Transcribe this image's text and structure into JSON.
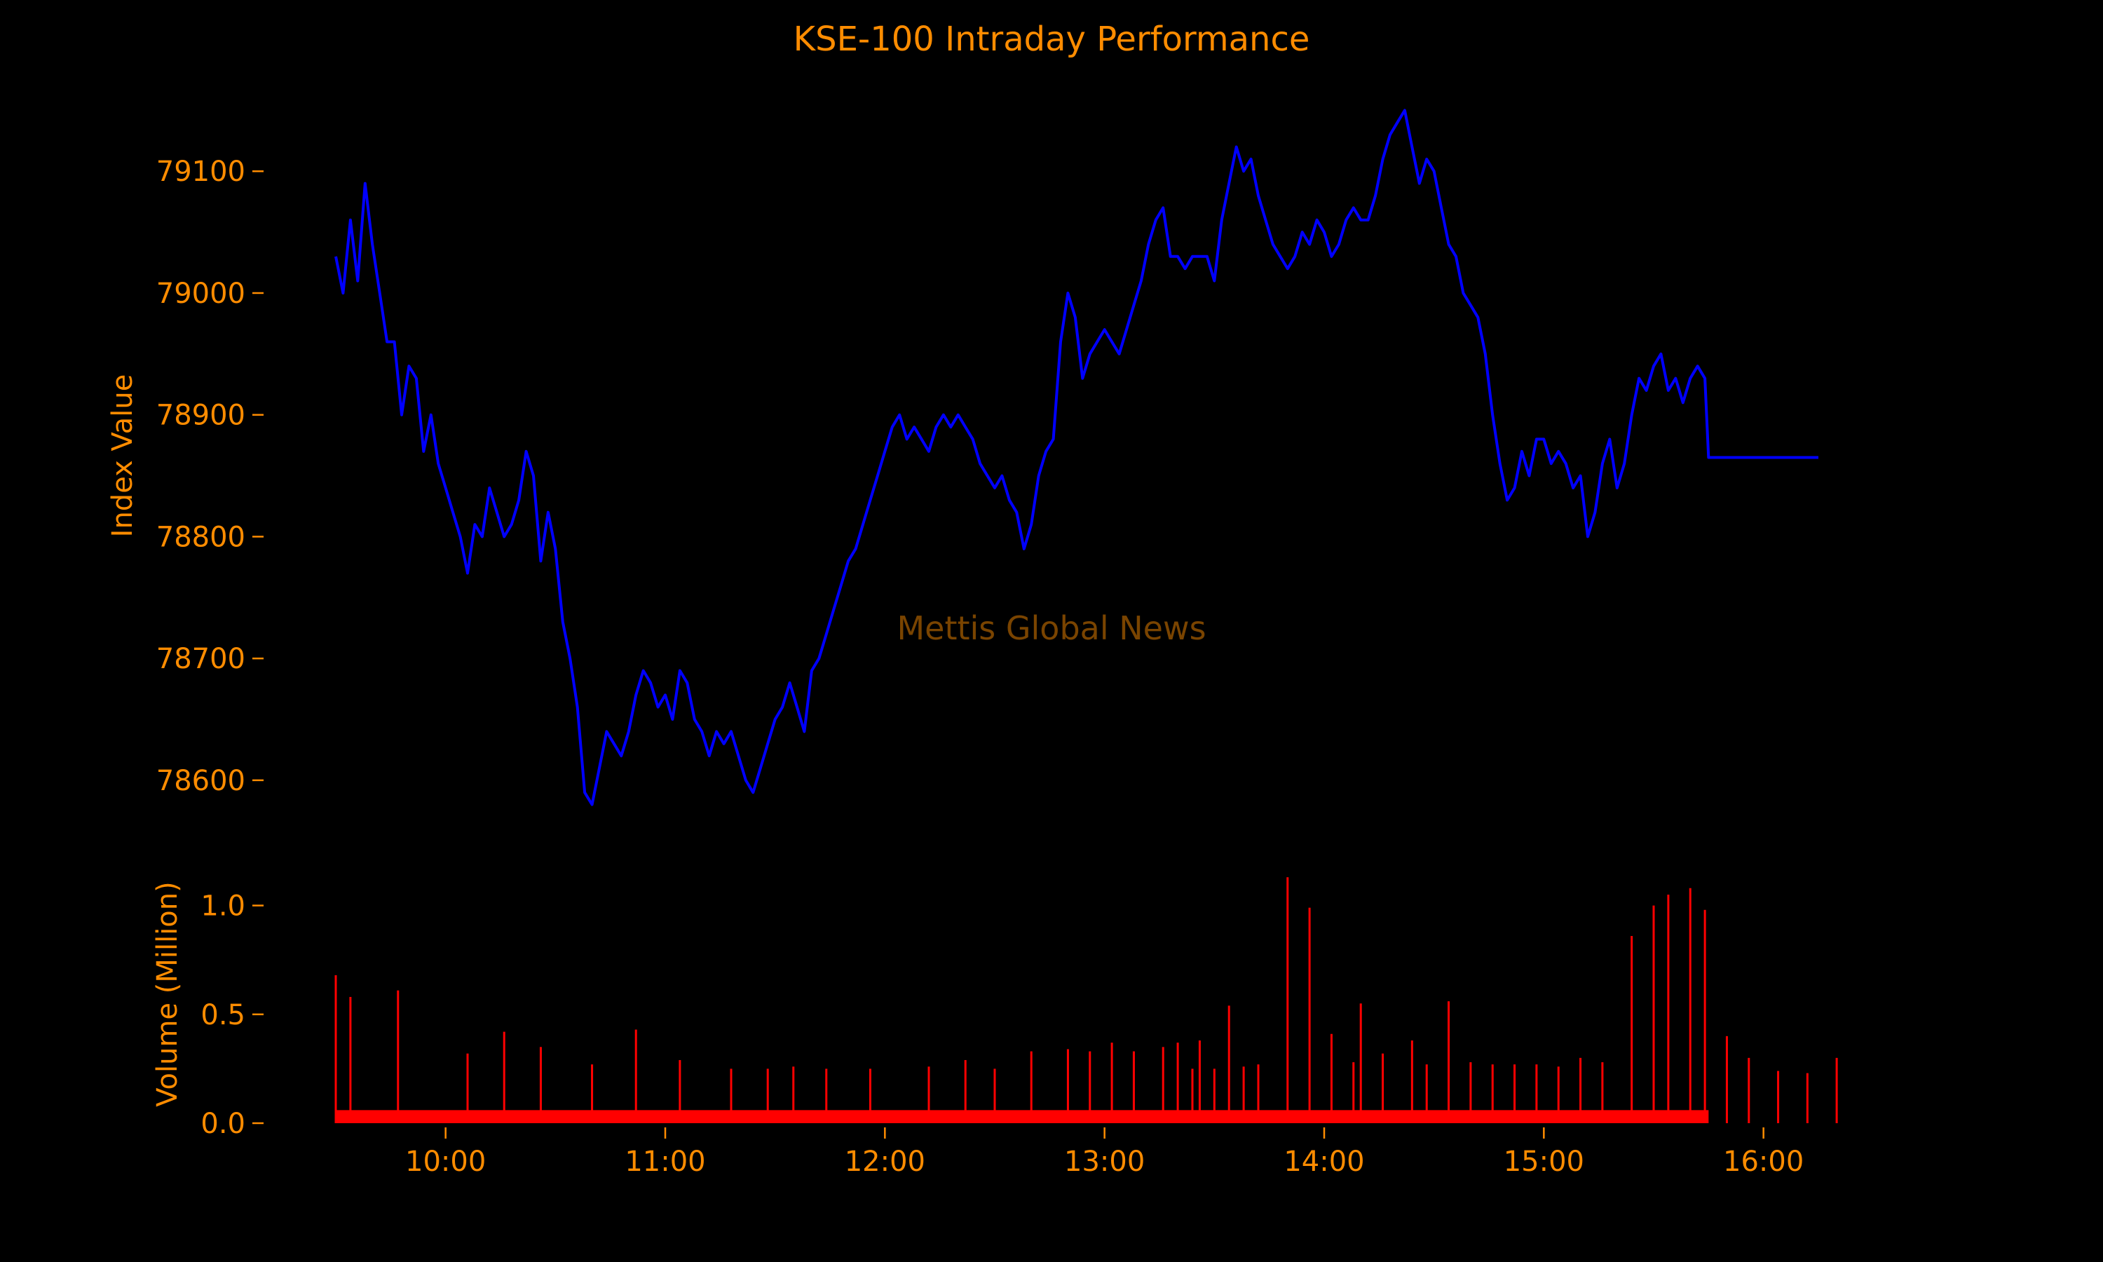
{
  "colors": {
    "background": "#000000",
    "text": "#ff8c00",
    "index_line": "#0000ff",
    "volume_bars": "#ff0000",
    "watermark": "#7a4400"
  },
  "chart_data": {
    "type": "line",
    "title": "KSE-100 Intraday Performance",
    "watermark": "Mettis Global News",
    "grid": false,
    "legend": "none",
    "x_axis": {
      "type": "time",
      "range": [
        "09:30",
        "16:15"
      ],
      "ticks": [
        "10:00",
        "11:00",
        "12:00",
        "13:00",
        "14:00",
        "15:00",
        "16:00"
      ]
    },
    "price_panel": {
      "ylabel": "Index Value",
      "ylim": [
        78570,
        79160
      ],
      "ticks": [
        "78600",
        "78700",
        "78800",
        "78900",
        "79000",
        "79100"
      ],
      "series": [
        {
          "points": [
            [
              "09:30",
              79030
            ],
            [
              "09:32",
              79000
            ],
            [
              "09:34",
              79060
            ],
            [
              "09:36",
              79010
            ],
            [
              "09:38",
              79090
            ],
            [
              "09:40",
              79040
            ],
            [
              "09:42",
              79000
            ],
            [
              "09:44",
              78960
            ],
            [
              "09:46",
              78960
            ],
            [
              "09:48",
              78900
            ],
            [
              "09:50",
              78940
            ],
            [
              "09:52",
              78930
            ],
            [
              "09:54",
              78870
            ],
            [
              "09:56",
              78900
            ],
            [
              "09:58",
              78860
            ],
            [
              "10:00",
              78840
            ],
            [
              "10:02",
              78820
            ],
            [
              "10:04",
              78800
            ],
            [
              "10:06",
              78770
            ],
            [
              "10:08",
              78810
            ],
            [
              "10:10",
              78800
            ],
            [
              "10:12",
              78840
            ],
            [
              "10:14",
              78820
            ],
            [
              "10:16",
              78800
            ],
            [
              "10:18",
              78810
            ],
            [
              "10:20",
              78830
            ],
            [
              "10:22",
              78870
            ],
            [
              "10:24",
              78850
            ],
            [
              "10:26",
              78780
            ],
            [
              "10:28",
              78820
            ],
            [
              "10:30",
              78790
            ],
            [
              "10:32",
              78730
            ],
            [
              "10:34",
              78700
            ],
            [
              "10:36",
              78660
            ],
            [
              "10:38",
              78590
            ],
            [
              "10:40",
              78580
            ],
            [
              "10:42",
              78610
            ],
            [
              "10:44",
              78640
            ],
            [
              "10:46",
              78630
            ],
            [
              "10:48",
              78620
            ],
            [
              "10:50",
              78640
            ],
            [
              "10:52",
              78670
            ],
            [
              "10:54",
              78690
            ],
            [
              "10:56",
              78680
            ],
            [
              "10:58",
              78660
            ],
            [
              "11:00",
              78670
            ],
            [
              "11:02",
              78650
            ],
            [
              "11:04",
              78690
            ],
            [
              "11:06",
              78680
            ],
            [
              "11:08",
              78650
            ],
            [
              "11:10",
              78640
            ],
            [
              "11:12",
              78620
            ],
            [
              "11:14",
              78640
            ],
            [
              "11:16",
              78630
            ],
            [
              "11:18",
              78640
            ],
            [
              "11:20",
              78620
            ],
            [
              "11:22",
              78600
            ],
            [
              "11:24",
              78590
            ],
            [
              "11:26",
              78610
            ],
            [
              "11:28",
              78630
            ],
            [
              "11:30",
              78650
            ],
            [
              "11:32",
              78660
            ],
            [
              "11:34",
              78680
            ],
            [
              "11:36",
              78660
            ],
            [
              "11:38",
              78640
            ],
            [
              "11:40",
              78690
            ],
            [
              "11:42",
              78700
            ],
            [
              "11:44",
              78720
            ],
            [
              "11:46",
              78740
            ],
            [
              "11:48",
              78760
            ],
            [
              "11:50",
              78780
            ],
            [
              "11:52",
              78790
            ],
            [
              "11:54",
              78810
            ],
            [
              "11:56",
              78830
            ],
            [
              "11:58",
              78850
            ],
            [
              "12:00",
              78870
            ],
            [
              "12:02",
              78890
            ],
            [
              "12:04",
              78900
            ],
            [
              "12:06",
              78880
            ],
            [
              "12:08",
              78890
            ],
            [
              "12:10",
              78880
            ],
            [
              "12:12",
              78870
            ],
            [
              "12:14",
              78890
            ],
            [
              "12:16",
              78900
            ],
            [
              "12:18",
              78890
            ],
            [
              "12:20",
              78900
            ],
            [
              "12:22",
              78890
            ],
            [
              "12:24",
              78880
            ],
            [
              "12:26",
              78860
            ],
            [
              "12:28",
              78850
            ],
            [
              "12:30",
              78840
            ],
            [
              "12:32",
              78850
            ],
            [
              "12:34",
              78830
            ],
            [
              "12:36",
              78820
            ],
            [
              "12:38",
              78790
            ],
            [
              "12:40",
              78810
            ],
            [
              "12:42",
              78850
            ],
            [
              "12:44",
              78870
            ],
            [
              "12:46",
              78880
            ],
            [
              "12:48",
              78960
            ],
            [
              "12:50",
              79000
            ],
            [
              "12:52",
              78980
            ],
            [
              "12:54",
              78930
            ],
            [
              "12:56",
              78950
            ],
            [
              "12:58",
              78960
            ],
            [
              "13:00",
              78970
            ],
            [
              "13:02",
              78960
            ],
            [
              "13:04",
              78950
            ],
            [
              "13:06",
              78970
            ],
            [
              "13:08",
              78990
            ],
            [
              "13:10",
              79010
            ],
            [
              "13:12",
              79040
            ],
            [
              "13:14",
              79060
            ],
            [
              "13:16",
              79070
            ],
            [
              "13:18",
              79030
            ],
            [
              "13:20",
              79030
            ],
            [
              "13:22",
              79020
            ],
            [
              "13:24",
              79030
            ],
            [
              "13:26",
              79030
            ],
            [
              "13:28",
              79030
            ],
            [
              "13:30",
              79010
            ],
            [
              "13:32",
              79060
            ],
            [
              "13:34",
              79090
            ],
            [
              "13:36",
              79120
            ],
            [
              "13:38",
              79100
            ],
            [
              "13:40",
              79110
            ],
            [
              "13:42",
              79080
            ],
            [
              "13:44",
              79060
            ],
            [
              "13:46",
              79040
            ],
            [
              "13:48",
              79030
            ],
            [
              "13:50",
              79020
            ],
            [
              "13:52",
              79030
            ],
            [
              "13:54",
              79050
            ],
            [
              "13:56",
              79040
            ],
            [
              "13:58",
              79060
            ],
            [
              "14:00",
              79050
            ],
            [
              "14:02",
              79030
            ],
            [
              "14:04",
              79040
            ],
            [
              "14:06",
              79060
            ],
            [
              "14:08",
              79070
            ],
            [
              "14:10",
              79060
            ],
            [
              "14:12",
              79060
            ],
            [
              "14:14",
              79080
            ],
            [
              "14:16",
              79110
            ],
            [
              "14:18",
              79130
            ],
            [
              "14:20",
              79140
            ],
            [
              "14:22",
              79150
            ],
            [
              "14:24",
              79120
            ],
            [
              "14:26",
              79090
            ],
            [
              "14:28",
              79110
            ],
            [
              "14:30",
              79100
            ],
            [
              "14:32",
              79070
            ],
            [
              "14:34",
              79040
            ],
            [
              "14:36",
              79030
            ],
            [
              "14:38",
              79000
            ],
            [
              "14:40",
              78990
            ],
            [
              "14:42",
              78980
            ],
            [
              "14:44",
              78950
            ],
            [
              "14:46",
              78900
            ],
            [
              "14:48",
              78860
            ],
            [
              "14:50",
              78830
            ],
            [
              "14:52",
              78840
            ],
            [
              "14:54",
              78870
            ],
            [
              "14:56",
              78850
            ],
            [
              "14:58",
              78880
            ],
            [
              "15:00",
              78880
            ],
            [
              "15:02",
              78860
            ],
            [
              "15:04",
              78870
            ],
            [
              "15:06",
              78860
            ],
            [
              "15:08",
              78840
            ],
            [
              "15:10",
              78850
            ],
            [
              "15:12",
              78800
            ],
            [
              "15:14",
              78820
            ],
            [
              "15:16",
              78860
            ],
            [
              "15:18",
              78880
            ],
            [
              "15:20",
              78840
            ],
            [
              "15:22",
              78860
            ],
            [
              "15:24",
              78900
            ],
            [
              "15:26",
              78930
            ],
            [
              "15:28",
              78920
            ],
            [
              "15:30",
              78940
            ],
            [
              "15:32",
              78950
            ],
            [
              "15:34",
              78920
            ],
            [
              "15:36",
              78930
            ],
            [
              "15:38",
              78910
            ],
            [
              "15:40",
              78930
            ],
            [
              "15:42",
              78940
            ],
            [
              "15:44",
              78930
            ],
            [
              "15:45",
              78865
            ],
            [
              "16:15",
              78865
            ]
          ]
        }
      ]
    },
    "volume_panel": {
      "ylabel": "Volume (Million)",
      "ylim": [
        0,
        1.15
      ],
      "ticks": [
        "0.0",
        "0.5",
        "1.0"
      ],
      "baseline": 0.06,
      "spikes": [
        [
          "09:30",
          0.68
        ],
        [
          "09:34",
          0.58
        ],
        [
          "09:47",
          0.61
        ],
        [
          "10:06",
          0.32
        ],
        [
          "10:16",
          0.42
        ],
        [
          "10:26",
          0.35
        ],
        [
          "10:40",
          0.27
        ],
        [
          "10:52",
          0.43
        ],
        [
          "11:04",
          0.29
        ],
        [
          "11:18",
          0.25
        ],
        [
          "11:28",
          0.25
        ],
        [
          "11:35",
          0.26
        ],
        [
          "11:44",
          0.25
        ],
        [
          "11:56",
          0.25
        ],
        [
          "12:12",
          0.26
        ],
        [
          "12:22",
          0.29
        ],
        [
          "12:30",
          0.25
        ],
        [
          "12:40",
          0.33
        ],
        [
          "12:50",
          0.34
        ],
        [
          "12:56",
          0.33
        ],
        [
          "13:02",
          0.37
        ],
        [
          "13:08",
          0.33
        ],
        [
          "13:16",
          0.35
        ],
        [
          "13:20",
          0.37
        ],
        [
          "13:24",
          0.25
        ],
        [
          "13:26",
          0.38
        ],
        [
          "13:30",
          0.25
        ],
        [
          "13:34",
          0.54
        ],
        [
          "13:38",
          0.26
        ],
        [
          "13:42",
          0.27
        ],
        [
          "13:50",
          1.13
        ],
        [
          "13:56",
          0.99
        ],
        [
          "14:02",
          0.41
        ],
        [
          "14:08",
          0.28
        ],
        [
          "14:10",
          0.55
        ],
        [
          "14:16",
          0.32
        ],
        [
          "14:24",
          0.38
        ],
        [
          "14:28",
          0.27
        ],
        [
          "14:34",
          0.56
        ],
        [
          "14:40",
          0.28
        ],
        [
          "14:46",
          0.27
        ],
        [
          "14:52",
          0.27
        ],
        [
          "14:58",
          0.27
        ],
        [
          "15:04",
          0.26
        ],
        [
          "15:10",
          0.3
        ],
        [
          "15:16",
          0.28
        ],
        [
          "15:24",
          0.86
        ],
        [
          "15:30",
          1.0
        ],
        [
          "15:34",
          1.05
        ],
        [
          "15:40",
          1.08
        ],
        [
          "15:44",
          0.98
        ],
        [
          "15:50",
          0.4
        ],
        [
          "15:56",
          0.3
        ],
        [
          "16:04",
          0.24
        ],
        [
          "16:12",
          0.23
        ],
        [
          "16:20",
          0.3
        ]
      ]
    }
  }
}
